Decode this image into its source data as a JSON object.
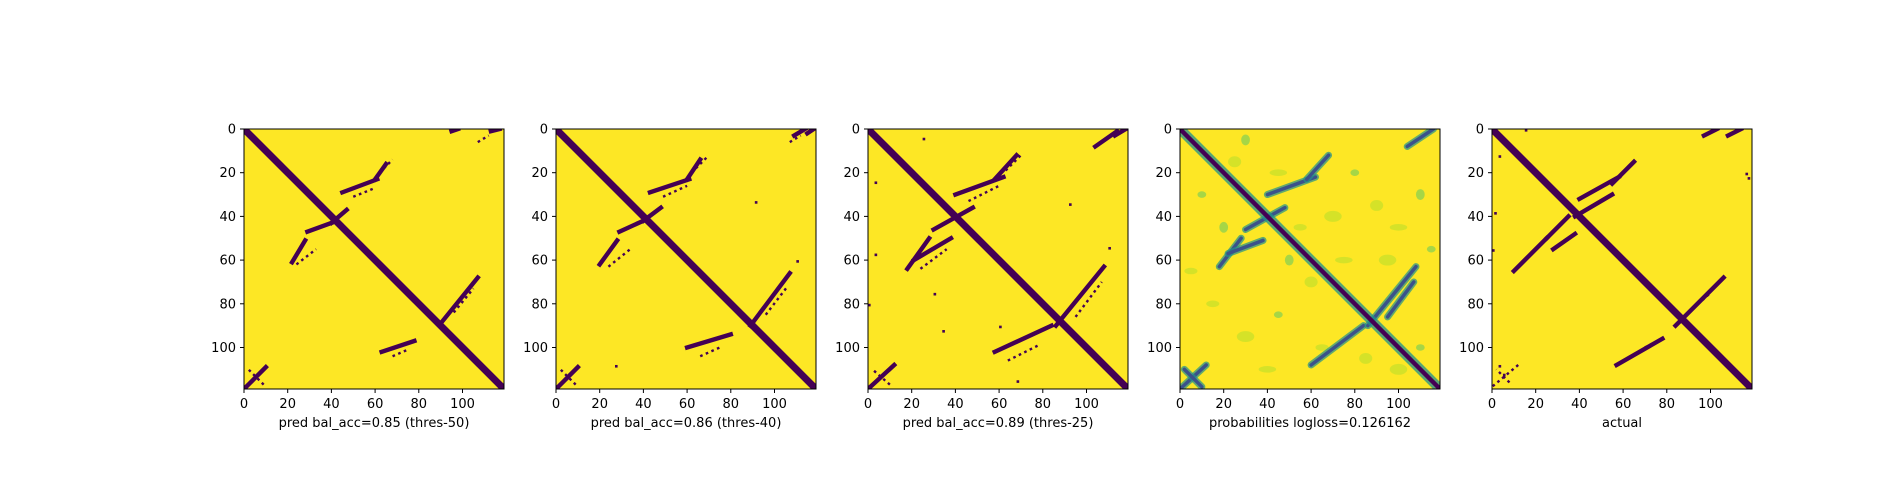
{
  "colors": {
    "background": "#fde725",
    "contact": "#440154",
    "mid_teal": "#21918c",
    "mid_blue": "#3b528b",
    "light_green": "#5ec962",
    "pale_green": "#b5de2b"
  },
  "chart_data": [
    {
      "type": "heatmap",
      "name": "panel-thres-50",
      "title": "",
      "xlabel": "pred bal_acc=0.85 (thres-50)",
      "ylabel": "",
      "xlim": [
        0,
        119
      ],
      "ylim": [
        119,
        0
      ],
      "xticks": [
        "0",
        "20",
        "40",
        "60",
        "80",
        "100"
      ],
      "yticks": [
        "0",
        "20",
        "40",
        "60",
        "80",
        "100"
      ],
      "colormap": "viridis-binary",
      "diagonal": [
        0,
        119
      ],
      "contact_segments": [
        {
          "from": [
            10,
            109
          ],
          "to": [
            0,
            119
          ],
          "kind": "solid"
        },
        {
          "from": [
            9,
            117
          ],
          "to": [
            2,
            110
          ],
          "kind": "dotted"
        },
        {
          "from": [
            22,
            61
          ],
          "to": [
            28,
            51
          ],
          "kind": "solid"
        },
        {
          "from": [
            29,
            47
          ],
          "to": [
            40,
            43
          ],
          "kind": "solid"
        },
        {
          "from": [
            40,
            43
          ],
          "to": [
            47,
            37
          ],
          "kind": "solid"
        },
        {
          "from": [
            24,
            62
          ],
          "to": [
            33,
            55
          ],
          "kind": "dotted"
        },
        {
          "from": [
            45,
            29
          ],
          "to": [
            61,
            23
          ],
          "kind": "solid"
        },
        {
          "from": [
            50,
            31
          ],
          "to": [
            60,
            27
          ],
          "kind": "dotted"
        },
        {
          "from": [
            60,
            23
          ],
          "to": [
            65,
            16
          ],
          "kind": "solid"
        },
        {
          "from": [
            64,
            18
          ],
          "to": [
            68,
            14
          ],
          "kind": "dotted"
        },
        {
          "from": [
            95,
            1
          ],
          "to": [
            98,
            0
          ],
          "kind": "solid"
        },
        {
          "from": [
            113,
            1
          ],
          "to": [
            117,
            0
          ],
          "kind": "solid"
        },
        {
          "from": [
            107,
            6
          ],
          "to": [
            112,
            3
          ],
          "kind": "dotted"
        },
        {
          "from": [
            63,
            102
          ],
          "to": [
            78,
            97
          ],
          "kind": "solid"
        },
        {
          "from": [
            68,
            104
          ],
          "to": [
            75,
            101
          ],
          "kind": "dotted"
        },
        {
          "from": [
            90,
            89
          ],
          "to": [
            107,
            68
          ],
          "kind": "solid"
        },
        {
          "from": [
            96,
            84
          ],
          "to": [
            105,
            73
          ],
          "kind": "dotted"
        }
      ],
      "speckles": []
    },
    {
      "type": "heatmap",
      "name": "panel-thres-40",
      "title": "",
      "xlabel": "pred bal_acc=0.86 (thres-40)",
      "ylabel": "",
      "xlim": [
        0,
        119
      ],
      "ylim": [
        119,
        0
      ],
      "xticks": [
        "0",
        "20",
        "40",
        "60",
        "80",
        "100"
      ],
      "yticks": [
        "0",
        "20",
        "40",
        "60",
        "80",
        "100"
      ],
      "colormap": "viridis-binary",
      "diagonal": [
        0,
        119
      ],
      "contact_segments": [
        {
          "from": [
            10,
            109
          ],
          "to": [
            0,
            119
          ],
          "kind": "solid"
        },
        {
          "from": [
            9,
            117
          ],
          "to": [
            2,
            110
          ],
          "kind": "dotted"
        },
        {
          "from": [
            20,
            62
          ],
          "to": [
            28,
            51
          ],
          "kind": "solid"
        },
        {
          "from": [
            29,
            47
          ],
          "to": [
            40,
            42
          ],
          "kind": "solid"
        },
        {
          "from": [
            40,
            42
          ],
          "to": [
            48,
            36
          ],
          "kind": "solid"
        },
        {
          "from": [
            24,
            63
          ],
          "to": [
            34,
            55
          ],
          "kind": "dotted"
        },
        {
          "from": [
            43,
            29
          ],
          "to": [
            61,
            23
          ],
          "kind": "solid"
        },
        {
          "from": [
            49,
            31
          ],
          "to": [
            60,
            26
          ],
          "kind": "dotted"
        },
        {
          "from": [
            60,
            23
          ],
          "to": [
            66,
            14
          ],
          "kind": "solid"
        },
        {
          "from": [
            64,
            18
          ],
          "to": [
            69,
            13
          ],
          "kind": "dotted"
        },
        {
          "from": [
            107,
            6
          ],
          "to": [
            112,
            3
          ],
          "kind": "dotted"
        },
        {
          "from": [
            109,
            3
          ],
          "to": [
            114,
            0
          ],
          "kind": "solid"
        },
        {
          "from": [
            115,
            2
          ],
          "to": [
            118,
            0
          ],
          "kind": "solid"
        },
        {
          "from": [
            60,
            100
          ],
          "to": [
            80,
            94
          ],
          "kind": "solid"
        },
        {
          "from": [
            66,
            104
          ],
          "to": [
            75,
            100
          ],
          "kind": "dotted"
        },
        {
          "from": [
            89,
            90
          ],
          "to": [
            107,
            66
          ],
          "kind": "solid"
        },
        {
          "from": [
            96,
            85
          ],
          "to": [
            106,
            72
          ],
          "kind": "dotted"
        }
      ],
      "speckles": [
        [
          91,
          33
        ],
        [
          27,
          108
        ],
        [
          110,
          60
        ]
      ]
    },
    {
      "type": "heatmap",
      "name": "panel-thres-25",
      "title": "",
      "xlabel": "pred bal_acc=0.89 (thres-25)",
      "ylabel": "",
      "xlim": [
        0,
        119
      ],
      "ylim": [
        119,
        0
      ],
      "xticks": [
        "0",
        "20",
        "40",
        "60",
        "80",
        "100"
      ],
      "yticks": [
        "0",
        "20",
        "40",
        "60",
        "80",
        "100"
      ],
      "colormap": "viridis-binary",
      "diagonal": [
        0,
        119
      ],
      "contact_segments": [
        {
          "from": [
            12,
            108
          ],
          "to": [
            0,
            119
          ],
          "kind": "solid"
        },
        {
          "from": [
            10,
            117
          ],
          "to": [
            2,
            110
          ],
          "kind": "dotted"
        },
        {
          "from": [
            18,
            64
          ],
          "to": [
            28,
            50
          ],
          "kind": "solid"
        },
        {
          "from": [
            21,
            60
          ],
          "to": [
            38,
            50
          ],
          "kind": "solid"
        },
        {
          "from": [
            30,
            46
          ],
          "to": [
            48,
            36
          ],
          "kind": "solid"
        },
        {
          "from": [
            24,
            64
          ],
          "to": [
            36,
            55
          ],
          "kind": "dotted"
        },
        {
          "from": [
            40,
            30
          ],
          "to": [
            62,
            22
          ],
          "kind": "solid"
        },
        {
          "from": [
            46,
            33
          ],
          "to": [
            60,
            26
          ],
          "kind": "dotted"
        },
        {
          "from": [
            58,
            23
          ],
          "to": [
            68,
            12
          ],
          "kind": "solid"
        },
        {
          "from": [
            63,
            19
          ],
          "to": [
            70,
            12
          ],
          "kind": "dotted"
        },
        {
          "from": [
            104,
            8
          ],
          "to": [
            114,
            1
          ],
          "kind": "solid"
        },
        {
          "from": [
            113,
            3
          ],
          "to": [
            118,
            0
          ],
          "kind": "solid"
        },
        {
          "from": [
            58,
            102
          ],
          "to": [
            84,
            90
          ],
          "kind": "solid"
        },
        {
          "from": [
            64,
            106
          ],
          "to": [
            78,
            99
          ],
          "kind": "dotted"
        },
        {
          "from": [
            86,
            90
          ],
          "to": [
            108,
            63
          ],
          "kind": "solid"
        },
        {
          "from": [
            95,
            86
          ],
          "to": [
            107,
            70
          ],
          "kind": "dotted"
        }
      ],
      "speckles": [
        [
          25,
          4
        ],
        [
          3,
          24
        ],
        [
          92,
          34
        ],
        [
          3,
          57
        ],
        [
          34,
          92
        ],
        [
          60,
          90
        ],
        [
          0,
          80
        ],
        [
          68,
          115
        ],
        [
          110,
          54
        ],
        [
          30,
          75
        ]
      ]
    },
    {
      "type": "heatmap",
      "name": "panel-probabilities",
      "title": "",
      "xlabel": "probabilities logloss=0.126162",
      "ylabel": "",
      "xlim": [
        0,
        119
      ],
      "ylim": [
        119,
        0
      ],
      "xticks": [
        "0",
        "20",
        "40",
        "60",
        "80",
        "100"
      ],
      "yticks": [
        "0",
        "20",
        "40",
        "60",
        "80",
        "100"
      ],
      "colormap": "viridis",
      "diagonal": [
        0,
        119
      ],
      "contact_segments": [
        {
          "from": [
            12,
            108
          ],
          "to": [
            0,
            119
          ],
          "kind": "soft"
        },
        {
          "from": [
            10,
            118
          ],
          "to": [
            2,
            110
          ],
          "kind": "soft"
        },
        {
          "from": [
            18,
            63
          ],
          "to": [
            28,
            50
          ],
          "kind": "soft"
        },
        {
          "from": [
            22,
            57
          ],
          "to": [
            38,
            51
          ],
          "kind": "soft"
        },
        {
          "from": [
            30,
            46
          ],
          "to": [
            48,
            36
          ],
          "kind": "soft"
        },
        {
          "from": [
            40,
            30
          ],
          "to": [
            62,
            22
          ],
          "kind": "soft"
        },
        {
          "from": [
            58,
            23
          ],
          "to": [
            68,
            12
          ],
          "kind": "soft"
        },
        {
          "from": [
            104,
            8
          ],
          "to": [
            116,
            0
          ],
          "kind": "soft"
        },
        {
          "from": [
            60,
            108
          ],
          "to": [
            84,
            90
          ],
          "kind": "soft"
        },
        {
          "from": [
            86,
            90
          ],
          "to": [
            108,
            63
          ],
          "kind": "soft"
        },
        {
          "from": [
            95,
            86
          ],
          "to": [
            107,
            70
          ],
          "kind": "soft"
        }
      ],
      "speckles": [
        [
          10,
          30
        ],
        [
          25,
          15
        ],
        [
          45,
          20
        ],
        [
          30,
          5
        ],
        [
          55,
          45
        ],
        [
          70,
          40
        ],
        [
          80,
          20
        ],
        [
          90,
          35
        ],
        [
          100,
          45
        ],
        [
          110,
          30
        ],
        [
          15,
          80
        ],
        [
          30,
          95
        ],
        [
          45,
          85
        ],
        [
          60,
          70
        ],
        [
          75,
          60
        ],
        [
          20,
          45
        ],
        [
          5,
          65
        ],
        [
          100,
          110
        ],
        [
          110,
          100
        ],
        [
          85,
          105
        ],
        [
          40,
          110
        ],
        [
          50,
          60
        ],
        [
          65,
          100
        ],
        [
          95,
          60
        ],
        [
          115,
          55
        ]
      ]
    },
    {
      "type": "heatmap",
      "name": "panel-actual",
      "title": "",
      "xlabel": "actual",
      "ylabel": "",
      "xlim": [
        0,
        119
      ],
      "ylim": [
        119,
        0
      ],
      "xticks": [
        "0",
        "20",
        "40",
        "60",
        "80",
        "100"
      ],
      "yticks": [
        "0",
        "20",
        "40",
        "60",
        "80",
        "100"
      ],
      "colormap": "viridis-binary",
      "diagonal": [
        0,
        119
      ],
      "contact_segments": [
        {
          "from": [
            12,
            108
          ],
          "to": [
            0,
            118
          ],
          "kind": "dotted"
        },
        {
          "from": [
            8,
            116
          ],
          "to": [
            2,
            110
          ],
          "kind": "dotted"
        },
        {
          "from": [
            10,
            65
          ],
          "to": [
            25,
            50
          ],
          "kind": "solid"
        },
        {
          "from": [
            25,
            50
          ],
          "to": [
            35,
            40
          ],
          "kind": "solid"
        },
        {
          "from": [
            28,
            55
          ],
          "to": [
            38,
            48
          ],
          "kind": "solid"
        },
        {
          "from": [
            38,
            40
          ],
          "to": [
            55,
            30
          ],
          "kind": "solid"
        },
        {
          "from": [
            40,
            32
          ],
          "to": [
            58,
            22
          ],
          "kind": "solid"
        },
        {
          "from": [
            55,
            25
          ],
          "to": [
            65,
            15
          ],
          "kind": "solid"
        },
        {
          "from": [
            97,
            3
          ],
          "to": [
            103,
            0
          ],
          "kind": "solid"
        },
        {
          "from": [
            108,
            3
          ],
          "to": [
            114,
            0
          ],
          "kind": "solid"
        },
        {
          "from": [
            57,
            108
          ],
          "to": [
            78,
            96
          ],
          "kind": "solid"
        },
        {
          "from": [
            70,
            100
          ],
          "to": [
            80,
            95
          ],
          "kind": "dotted"
        },
        {
          "from": [
            84,
            90
          ],
          "to": [
            106,
            68
          ],
          "kind": "solid"
        },
        {
          "from": [
            90,
            84
          ],
          "to": [
            100,
            75
          ],
          "kind": "dotted"
        }
      ],
      "speckles": [
        [
          3,
          12
        ],
        [
          15,
          0
        ],
        [
          1,
          38
        ],
        [
          0,
          55
        ],
        [
          117,
          22
        ],
        [
          116,
          20
        ],
        [
          3,
          108
        ],
        [
          5,
          112
        ]
      ]
    }
  ]
}
